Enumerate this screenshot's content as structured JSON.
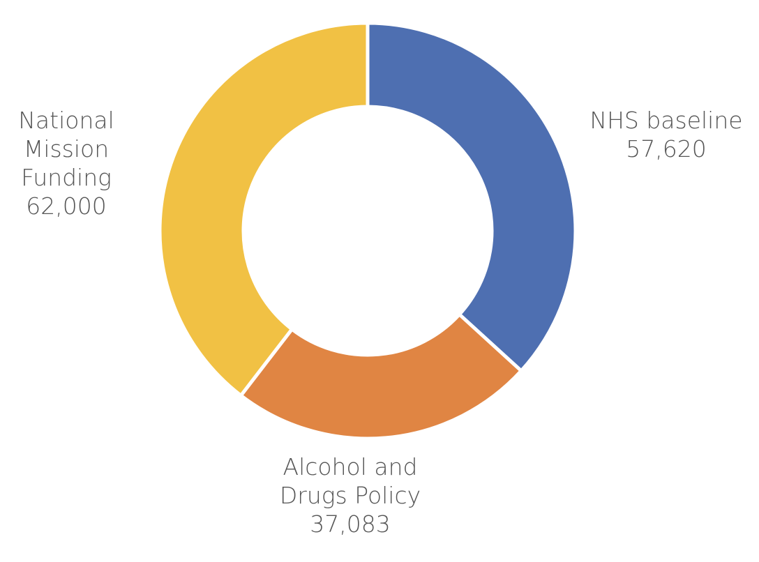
{
  "chart_data": {
    "type": "donut",
    "categories": [
      "NHS baseline",
      "Alcohol and Drugs Policy",
      "National Mission Funding"
    ],
    "values": [
      57620,
      37083,
      62000
    ],
    "value_labels": [
      "57,620",
      "37,083",
      "62,000"
    ],
    "colors": [
      "#4e6fb1",
      "#e08543",
      "#f1c144"
    ]
  }
}
